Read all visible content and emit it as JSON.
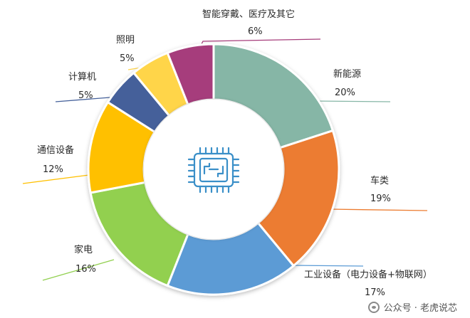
{
  "chart_data": {
    "type": "pie",
    "categories": [
      "新能源",
      "车类",
      "工业设备（电力设备+物联网）",
      "家电",
      "通信设备",
      "计算机",
      "照明",
      "智能穿戴、医疗及其它"
    ],
    "values": [
      20,
      19,
      17,
      16,
      12,
      5,
      5,
      6
    ],
    "value_labels": [
      "20%",
      "19%",
      "17%",
      "16%",
      "12%",
      "5%",
      "5%",
      "6%"
    ],
    "colors": [
      "#86b6a6",
      "#ec7c30",
      "#5b9bd5",
      "#92d050",
      "#ffc000",
      "#44609a",
      "#ffd54a",
      "#a63d7b"
    ],
    "leader_colors": [
      "#86b6a6",
      "#ec7c30",
      "#5b9bd5",
      "#92d050",
      "#ffc000",
      "#44609a",
      "#ffd54a",
      "#a63d7b"
    ],
    "center_icon": "chip-icon",
    "legend": "none"
  },
  "watermark": {
    "text": "公众号 · 老虎说芯",
    "icon": "wechat-icon"
  }
}
